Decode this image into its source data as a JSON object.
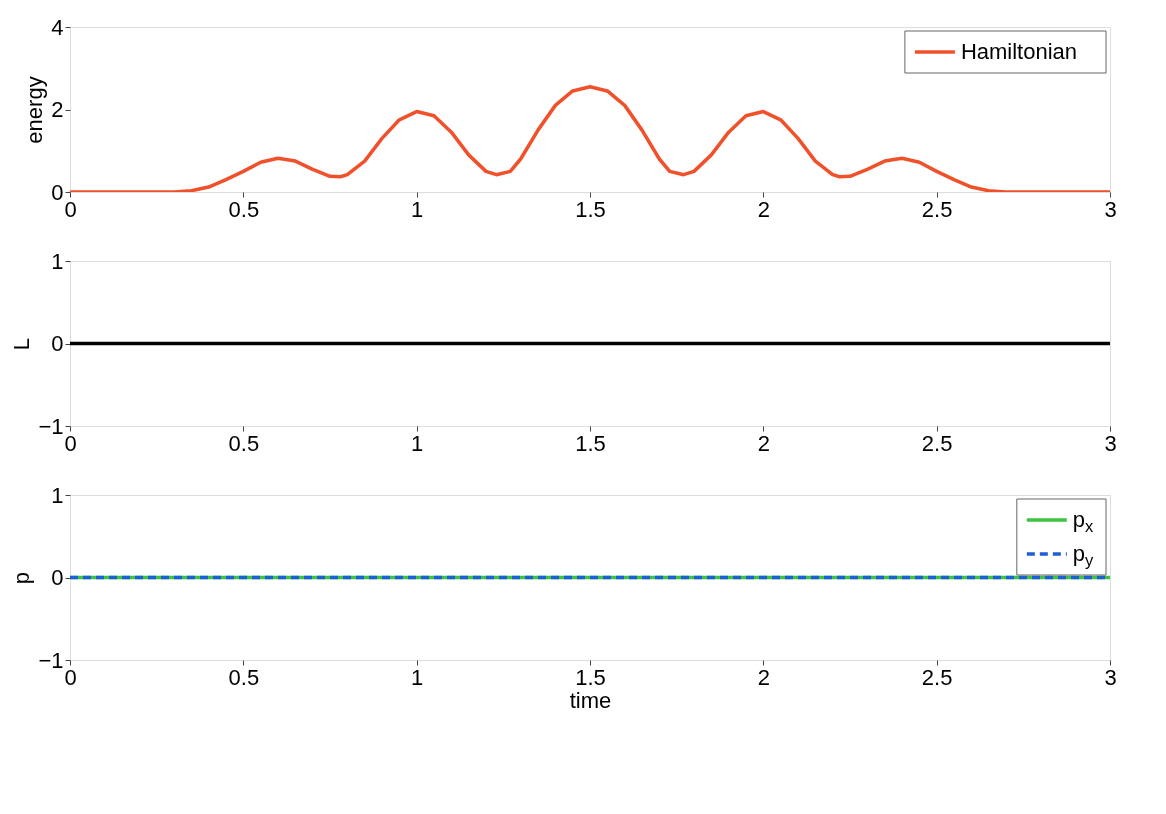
{
  "chart_data": [
    {
      "type": "line",
      "ylabel": "energy",
      "xlim": [
        0,
        3
      ],
      "xticks": [
        0,
        0.5,
        1,
        1.5,
        2,
        2.5,
        3
      ],
      "ylim": [
        0,
        4
      ],
      "yticks": [
        0,
        2,
        4
      ],
      "legend": "top right",
      "x": [
        0,
        0.3,
        0.35,
        0.4,
        0.45,
        0.5,
        0.55,
        0.6,
        0.65,
        0.7,
        0.75,
        0.78,
        0.8,
        0.85,
        0.9,
        0.95,
        1.0,
        1.05,
        1.1,
        1.15,
        1.2,
        1.23,
        1.27,
        1.3,
        1.35,
        1.4,
        1.45,
        1.5,
        1.55,
        1.6,
        1.65,
        1.7,
        1.73,
        1.77,
        1.8,
        1.85,
        1.9,
        1.95,
        2.0,
        2.05,
        2.1,
        2.15,
        2.2,
        2.22,
        2.25,
        2.3,
        2.35,
        2.4,
        2.45,
        2.5,
        2.55,
        2.6,
        2.65,
        2.7,
        3
      ],
      "series": [
        {
          "name": "Hamiltonian",
          "color": "#f0502a",
          "values": [
            0,
            0,
            0.03,
            0.12,
            0.3,
            0.5,
            0.72,
            0.82,
            0.75,
            0.55,
            0.38,
            0.37,
            0.42,
            0.75,
            1.3,
            1.75,
            1.95,
            1.85,
            1.45,
            0.9,
            0.5,
            0.42,
            0.5,
            0.8,
            1.5,
            2.1,
            2.45,
            2.55,
            2.45,
            2.1,
            1.5,
            0.8,
            0.5,
            0.42,
            0.5,
            0.9,
            1.45,
            1.85,
            1.95,
            1.75,
            1.3,
            0.75,
            0.42,
            0.37,
            0.38,
            0.55,
            0.75,
            0.82,
            0.72,
            0.5,
            0.3,
            0.12,
            0.03,
            0,
            0
          ]
        }
      ]
    },
    {
      "type": "line",
      "ylabel": "L",
      "xlim": [
        0,
        3
      ],
      "xticks": [
        0,
        0.5,
        1,
        1.5,
        2,
        2.5,
        3
      ],
      "ylim": [
        -1,
        1
      ],
      "yticks": [
        -1,
        0,
        1
      ],
      "x": [
        0,
        3
      ],
      "series": [
        {
          "color": "#000000",
          "values": [
            0,
            0
          ]
        }
      ]
    },
    {
      "type": "line",
      "xlabel": "time",
      "ylabel": "p",
      "xlim": [
        0,
        3
      ],
      "xticks": [
        0,
        0.5,
        1,
        1.5,
        2,
        2.5,
        3
      ],
      "ylim": [
        -1,
        1
      ],
      "yticks": [
        -1,
        0,
        1
      ],
      "legend": "top right",
      "x": [
        0,
        3
      ],
      "series": [
        {
          "name": "p$_{x}$",
          "color": "#3cc43c",
          "line_style": "solid",
          "values": [
            0,
            0
          ]
        },
        {
          "name": "p$_{y}$",
          "color": "#1f5fd6",
          "line_style": "dashed",
          "values": [
            0,
            0
          ]
        }
      ]
    }
  ]
}
